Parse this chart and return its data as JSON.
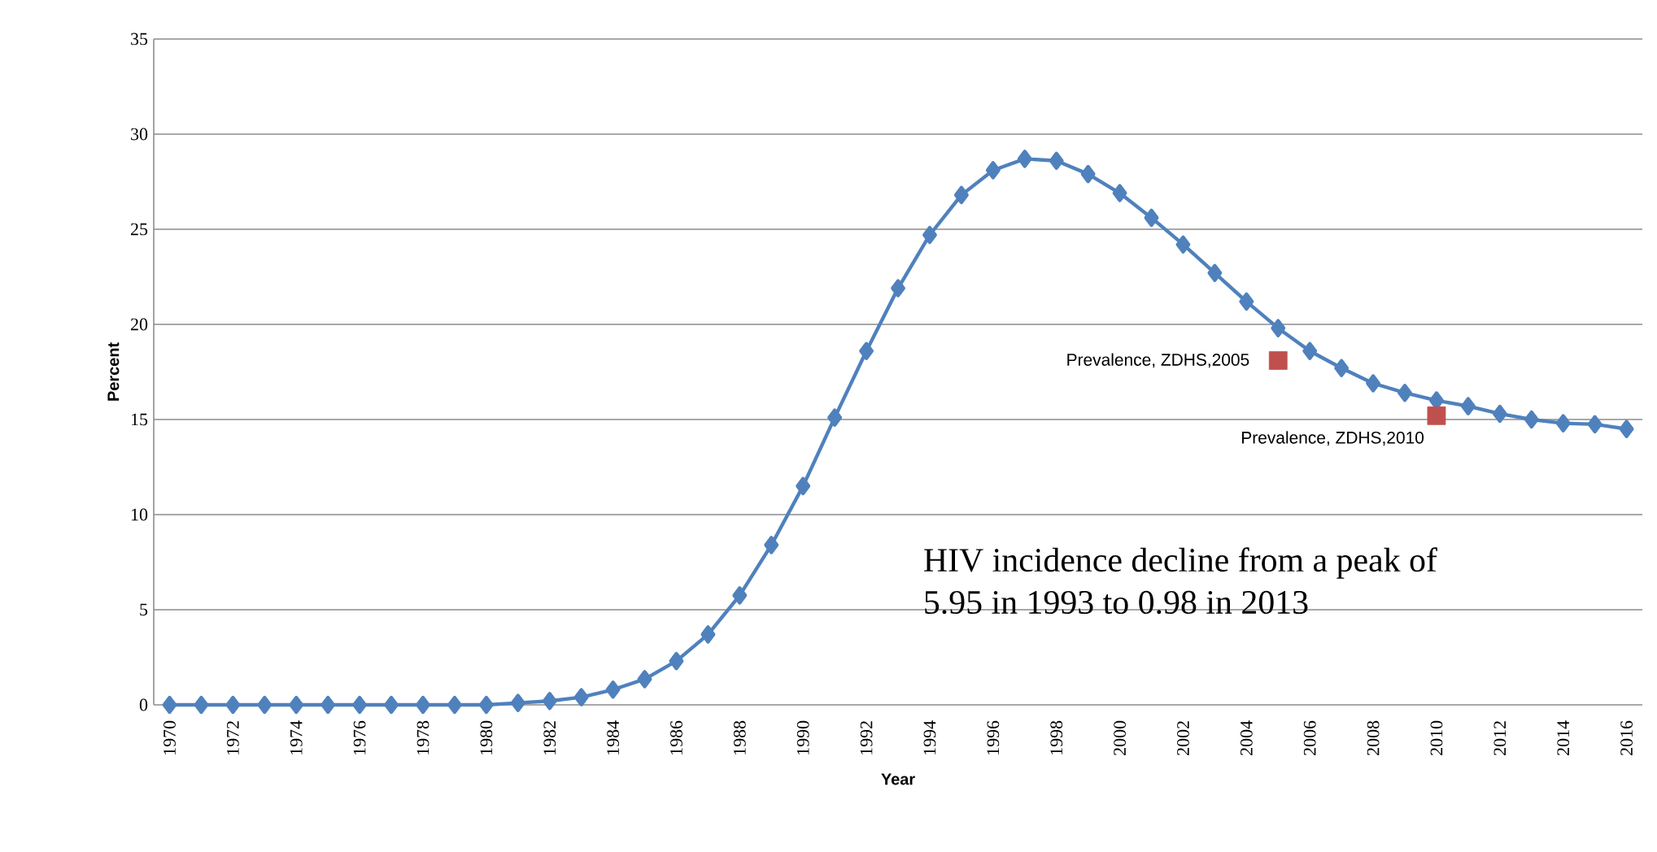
{
  "chart_data": {
    "type": "line",
    "xlabel": "Year",
    "ylabel": "Percent",
    "x": [
      1970,
      1971,
      1972,
      1973,
      1974,
      1975,
      1976,
      1977,
      1978,
      1979,
      1980,
      1981,
      1982,
      1983,
      1984,
      1985,
      1986,
      1987,
      1988,
      1989,
      1990,
      1991,
      1992,
      1993,
      1994,
      1995,
      1996,
      1997,
      1998,
      1999,
      2000,
      2001,
      2002,
      2003,
      2004,
      2005,
      2006,
      2007,
      2008,
      2009,
      2010,
      2011,
      2012,
      2013,
      2014,
      2015,
      2016
    ],
    "series": [
      {
        "color": "#4f81bd",
        "marker": "diamond",
        "line_style": "solid",
        "values": [
          0,
          0,
          0,
          0,
          0,
          0,
          0,
          0,
          0,
          0,
          0,
          0.1,
          0.2,
          0.4,
          0.8,
          1.35,
          2.3,
          3.7,
          5.75,
          8.4,
          11.5,
          15.1,
          18.6,
          21.9,
          24.7,
          26.8,
          28.1,
          28.7,
          28.6,
          27.9,
          26.9,
          25.6,
          24.2,
          22.7,
          21.2,
          19.8,
          18.6,
          17.7,
          16.9,
          16.4,
          16.0,
          15.7,
          15.3,
          15.0,
          14.8,
          14.75,
          14.5
        ]
      },
      {
        "type": "scatter",
        "color": "#c0504d",
        "marker": "square",
        "x": [
          2005,
          2010
        ],
        "values": [
          18.1,
          15.2
        ]
      }
    ],
    "xlim": [
      1969.5,
      2016.5
    ],
    "xticks": [
      1970,
      1972,
      1974,
      1976,
      1978,
      1980,
      1982,
      1984,
      1986,
      1988,
      1990,
      1992,
      1994,
      1996,
      1998,
      2000,
      2002,
      2004,
      2006,
      2008,
      2010,
      2012,
      2014,
      2016
    ],
    "ylim": [
      0,
      35
    ],
    "yticks": [
      0,
      5,
      10,
      15,
      20,
      25,
      30,
      35
    ],
    "grid": "y",
    "annotations": [
      {
        "text": "Prevalence, ZDHS,2005",
        "x": 2005,
        "y": 18.1
      },
      {
        "text": "Prevalence, ZDHS,2010",
        "x": 2010,
        "y": 15.2
      },
      "HIV incidence decline from a peak of 5.95 in 1993 to 0.98 in 2013"
    ]
  }
}
